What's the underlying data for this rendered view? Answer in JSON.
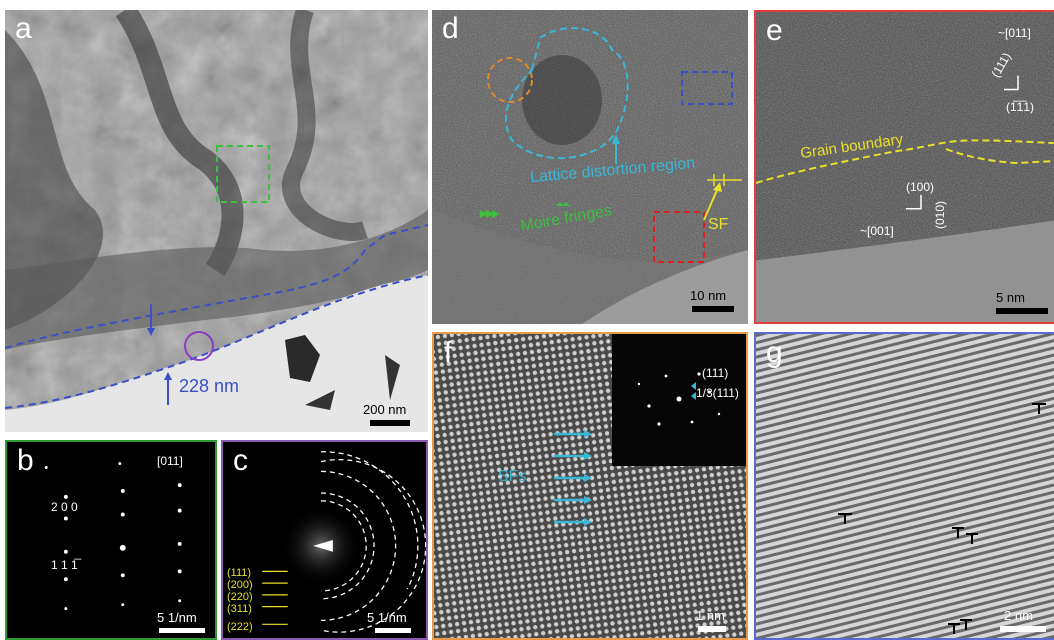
{
  "panels": {
    "a": {
      "label": "a",
      "scale": "200 nm",
      "thickness": "228 nm"
    },
    "b": {
      "label": "b",
      "zone_axis": "[011]",
      "spot_200": "2 0 0",
      "spot_111": "1 1 1̅",
      "scale": "5 1/nm"
    },
    "c": {
      "label": "c",
      "scale": "5 1/nm",
      "rings": [
        "(111)",
        "(200)",
        "(220)",
        "(311)",
        "(222)"
      ]
    },
    "d": {
      "label": "d",
      "scale": "10 nm",
      "lattice_label": "Lattice distortion region",
      "moire_label": "Moire fringes",
      "sf_label": "SF"
    },
    "e": {
      "label": "e",
      "scale": "5 nm",
      "zone_top": "~[011]",
      "plane_111a": "(111)",
      "plane_111b": "(1̅1̅1)",
      "gb_label": "Grain boundary",
      "plane_100": "(100)",
      "plane_010": "(010)",
      "zone_bottom": "~[001]"
    },
    "f": {
      "label": "f",
      "scale": "1 nm",
      "sfs_label": "SFs",
      "fft_111": "(111)",
      "fft_third": "1/3(111)"
    },
    "g": {
      "label": "g",
      "scale": "2 nm"
    }
  },
  "colors": {
    "blue_dash": "#3b4fc8",
    "green_dash": "#3fbf3f",
    "purple": "#8a3fbf",
    "cyan": "#3ab7d6",
    "orange": "#e08a2a",
    "red": "#e02020",
    "yellow": "#e8e02a",
    "frame_green": "#2e9a2e",
    "frame_purple": "#8a5ab0",
    "frame_red": "#e23c3c",
    "frame_orange": "#e89a4a",
    "frame_blue": "#5a6ad0"
  }
}
